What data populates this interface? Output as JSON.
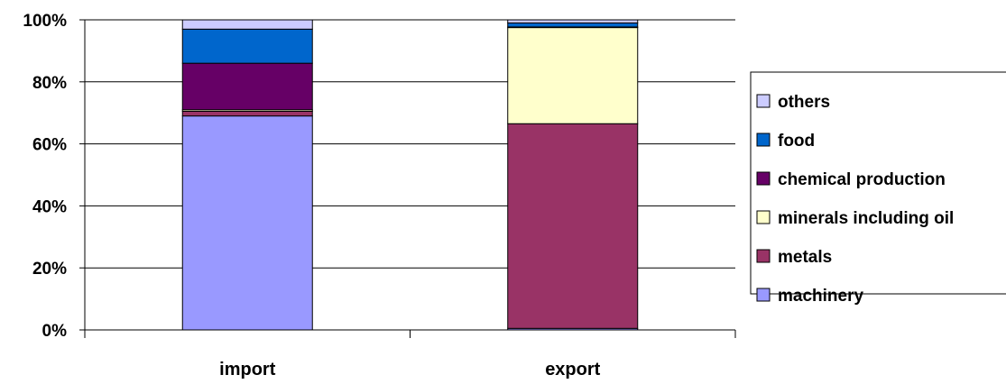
{
  "chart_data": {
    "type": "bar",
    "stacked": true,
    "categories": [
      "import",
      "export"
    ],
    "series": [
      {
        "name": "machinery",
        "values": [
          69,
          0.5
        ],
        "color": "#9999ff"
      },
      {
        "name": "metals",
        "values": [
          1.5,
          66
        ],
        "color": "#993366"
      },
      {
        "name": "minerals including oil",
        "values": [
          0.5,
          31
        ],
        "color": "#ffffcc"
      },
      {
        "name": "chemical production",
        "values": [
          15,
          0.2
        ],
        "color": "#660066"
      },
      {
        "name": "food",
        "values": [
          11,
          1.3
        ],
        "color": "#0066cc"
      },
      {
        "name": "others",
        "values": [
          3,
          1
        ],
        "color": "#ccccff"
      }
    ],
    "yticks": [
      "0%",
      "20%",
      "40%",
      "60%",
      "80%",
      "100%"
    ],
    "ylim": [
      0,
      100
    ],
    "grid": true,
    "legend_position": "right",
    "legend_order": [
      "others",
      "food",
      "chemical production",
      "minerals including oil",
      "metals",
      "machinery"
    ]
  }
}
